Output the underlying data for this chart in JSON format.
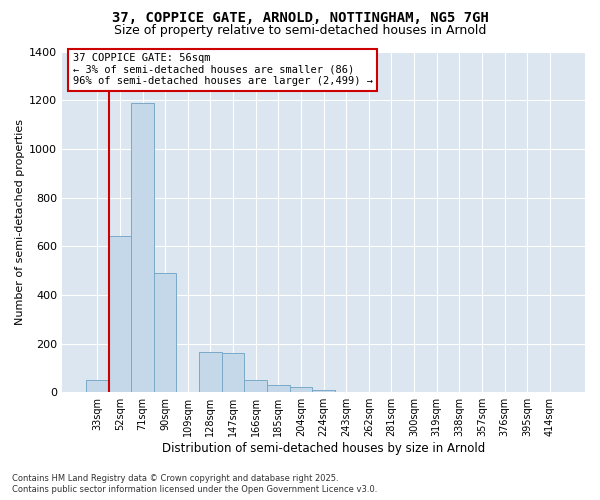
{
  "title_line1": "37, COPPICE GATE, ARNOLD, NOTTINGHAM, NG5 7GH",
  "title_line2": "Size of property relative to semi-detached houses in Arnold",
  "xlabel": "Distribution of semi-detached houses by size in Arnold",
  "ylabel": "Number of semi-detached properties",
  "categories": [
    "33sqm",
    "52sqm",
    "71sqm",
    "90sqm",
    "109sqm",
    "128sqm",
    "147sqm",
    "166sqm",
    "185sqm",
    "204sqm",
    "224sqm",
    "243sqm",
    "262sqm",
    "281sqm",
    "300sqm",
    "319sqm",
    "338sqm",
    "357sqm",
    "376sqm",
    "395sqm",
    "414sqm"
  ],
  "values": [
    50,
    640,
    1190,
    490,
    0,
    165,
    160,
    50,
    30,
    20,
    10,
    0,
    0,
    0,
    0,
    0,
    0,
    0,
    0,
    0,
    0
  ],
  "bar_color": "#c5d8ea",
  "bar_edge_color": "#7aaac8",
  "vline_index": 1,
  "vline_color": "#cc0000",
  "annotation_line1": "37 COPPICE GATE: 56sqm",
  "annotation_line2": "← 3% of semi-detached houses are smaller (86)",
  "annotation_line3": "96% of semi-detached houses are larger (2,499) →",
  "annotation_edge_color": "#cc0000",
  "ylim": [
    0,
    1400
  ],
  "yticks": [
    0,
    200,
    400,
    600,
    800,
    1000,
    1200,
    1400
  ],
  "background_color": "#dce6f0",
  "grid_color": "#ffffff",
  "footer_line1": "Contains HM Land Registry data © Crown copyright and database right 2025.",
  "footer_line2": "Contains public sector information licensed under the Open Government Licence v3.0.",
  "title_fontsize": 10,
  "subtitle_fontsize": 9,
  "bar_width": 1.0
}
